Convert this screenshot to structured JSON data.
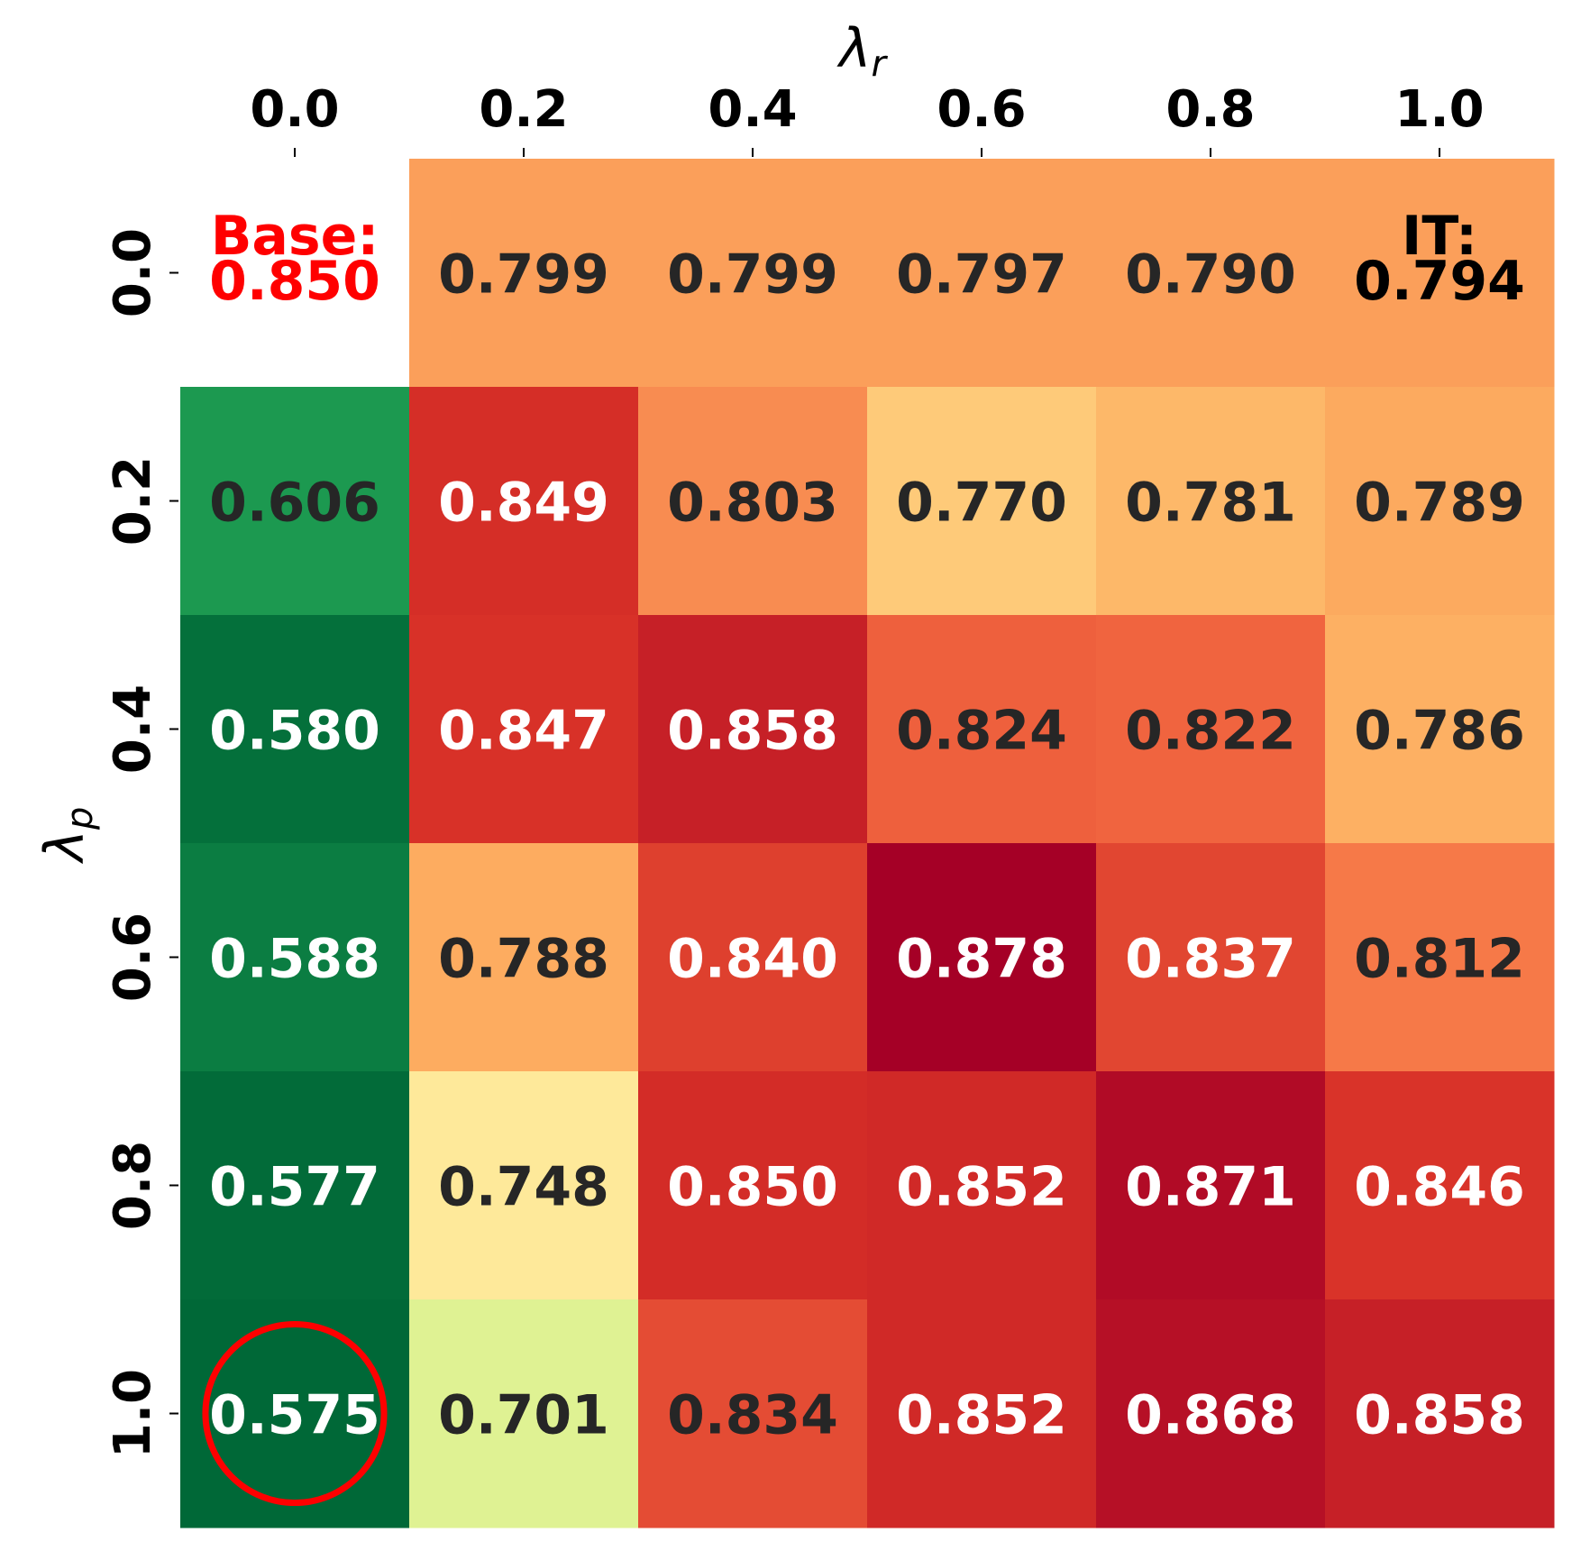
{
  "chart_data": {
    "type": "heatmap",
    "colormap": "RdYlGn_r",
    "color_range": [
      0.575,
      0.878
    ],
    "x_axis": {
      "label_symbol": "λ",
      "label_subscript": "r",
      "position": "top",
      "ticks": [
        "0.0",
        "0.2",
        "0.4",
        "0.6",
        "0.8",
        "1.0"
      ]
    },
    "y_axis": {
      "label_symbol": "λ",
      "label_subscript": "p",
      "ticks": [
        "0.0",
        "0.2",
        "0.4",
        "0.6",
        "0.8",
        "1.0"
      ]
    },
    "values": [
      [
        null,
        0.799,
        0.799,
        0.797,
        0.79,
        0.794
      ],
      [
        0.606,
        0.849,
        0.803,
        0.77,
        0.781,
        0.789
      ],
      [
        0.58,
        0.847,
        0.858,
        0.824,
        0.822,
        0.786
      ],
      [
        0.588,
        0.788,
        0.84,
        0.878,
        0.837,
        0.812
      ],
      [
        0.577,
        0.748,
        0.85,
        0.852,
        0.871,
        0.846
      ],
      [
        0.575,
        0.701,
        0.834,
        0.852,
        0.868,
        0.858
      ]
    ],
    "uniform_row_color_value": 0.794,
    "annotations": [
      {
        "row": 0,
        "col": 0,
        "prefix": "Base:",
        "value": "0.850",
        "color": "#ff0000"
      },
      {
        "row": 0,
        "col": 5,
        "prefix": "IT:",
        "value": "0.794",
        "color": "#000000"
      }
    ],
    "highlight": {
      "row": 5,
      "col": 0,
      "shape": "circle",
      "color": "#ff0000"
    }
  }
}
